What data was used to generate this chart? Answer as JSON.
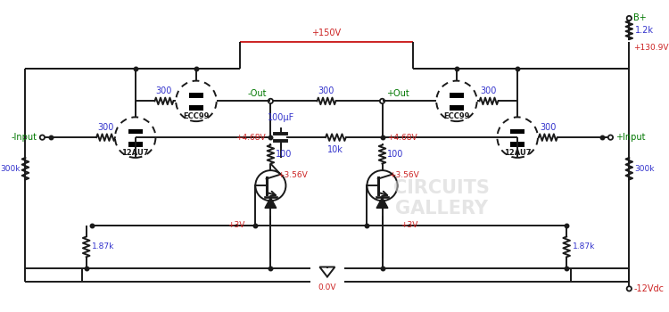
{
  "bg_color": "#ffffff",
  "line_color": "#1a1a1a",
  "blue_color": "#3333cc",
  "red_color": "#cc2222",
  "green_color": "#007700",
  "wm_color": "#d0d0d0",
  "labels": {
    "B_plus": "B+",
    "minus12Vdc": "-12Vdc",
    "plus150V": "+150V",
    "plus130_9V": "+130.9V",
    "plus4_68V": "+4.68V",
    "plus3_56V": "+3.56V",
    "plus3V": "+3V",
    "zero_V": "0.0V",
    "minus_input": "-Input",
    "plus_input": "+Input",
    "minus_out": "-Out",
    "plus_out": "+Out",
    "R_300": "300",
    "R_100": "100",
    "R_10k": "10k",
    "R_1_87k": "1.87k",
    "R_300k": "300k",
    "R_1_2k": "1.2k",
    "C_100uF": "100μF",
    "tube_ECC99": "ECC99",
    "tube_12AU7": "12AU7"
  }
}
